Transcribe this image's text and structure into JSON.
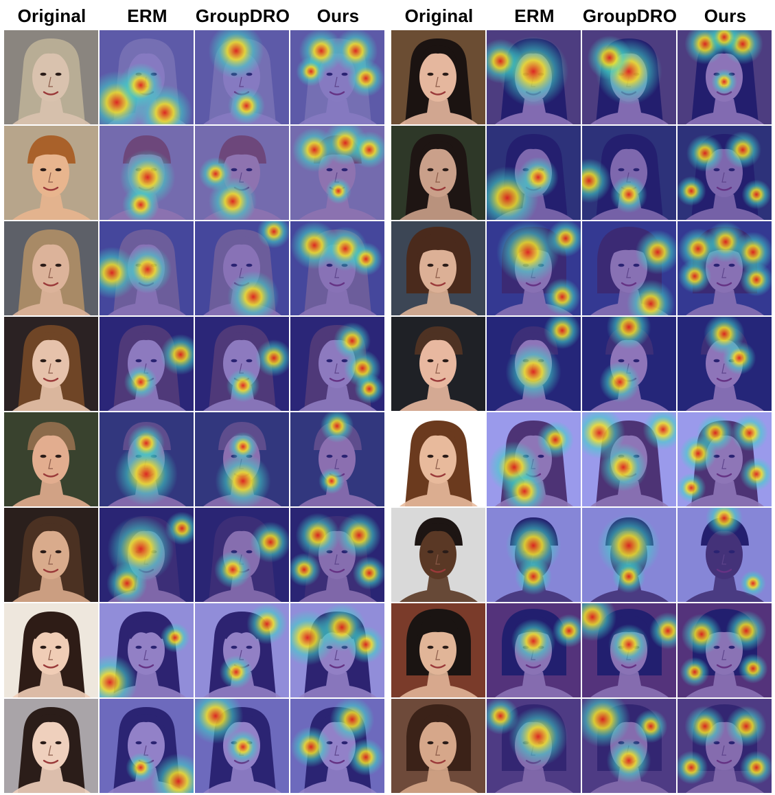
{
  "columns": [
    "Original",
    "ERM",
    "GroupDRO",
    "Ours"
  ],
  "palette": {
    "jet_overlay_tint": "#2b2bd6",
    "hot": "#e0241c",
    "warm": "#f2e32a",
    "mid": "#3fd3c9"
  },
  "panels": [
    {
      "rows": [
        {
          "bg": "#8a857f",
          "hair": "#b8ad95",
          "skin": "#d9c2ae",
          "hair_style": "long"
        },
        {
          "bg": "#b7a58b",
          "hair": "#a9612a",
          "skin": "#e8b58e",
          "hair_style": "bowl"
        },
        {
          "bg": "#5d6068",
          "hair": "#a88a66",
          "skin": "#dcb39a",
          "hair_style": "long"
        },
        {
          "bg": "#2b2223",
          "hair": "#6f4526",
          "skin": "#e6c2ab",
          "hair_style": "long"
        },
        {
          "bg": "#39422e",
          "hair": "#8c6b4b",
          "skin": "#e2ad8f",
          "hair_style": "short"
        },
        {
          "bg": "#2a1f1c",
          "hair": "#4b3122",
          "skin": "#d9ab8c",
          "hair_style": "long"
        },
        {
          "bg": "#eee7dd",
          "hair": "#2e1c16",
          "skin": "#f0cdb6",
          "hair_style": "bangs"
        },
        {
          "bg": "#a9a4a8",
          "hair": "#2b1d19",
          "skin": "#efd0bd",
          "hair_style": "long"
        }
      ]
    },
    {
      "rows": [
        {
          "bg": "#6b4d33",
          "hair": "#1b1311",
          "skin": "#e5b79e",
          "hair_style": "long"
        },
        {
          "bg": "#2e3828",
          "hair": "#1e1513",
          "skin": "#caa08a",
          "hair_style": "long"
        },
        {
          "bg": "#3c4655",
          "hair": "#4a2a1c",
          "skin": "#dcb096",
          "hair_style": "bob"
        },
        {
          "bg": "#1f2126",
          "hair": "#4e3223",
          "skin": "#e8b8a0",
          "hair_style": "short"
        },
        {
          "bg": "#ffffff",
          "hair": "#6b3a1e",
          "skin": "#e8ba9c",
          "hair_style": "wide"
        },
        {
          "bg": "#d9d9d9",
          "hair": "#1d1513",
          "skin": "#5a3825",
          "hair_style": "short"
        },
        {
          "bg": "#7a3b2a",
          "hair": "#1a1412",
          "skin": "#e1b598",
          "hair_style": "bob"
        },
        {
          "bg": "#6e4a3a",
          "hair": "#3b2218",
          "skin": "#d6a78a",
          "hair_style": "bouffant"
        }
      ]
    }
  ],
  "heatmaps": {
    "ERM": [
      [
        [
          25,
          105,
          34
        ],
        [
          95,
          120,
          30
        ],
        [
          60,
          80,
          24
        ]
      ],
      [
        [
          70,
          75,
          30
        ],
        [
          60,
          115,
          20
        ]
      ],
      [
        [
          18,
          75,
          28
        ],
        [
          70,
          70,
          26
        ]
      ],
      [
        [
          118,
          55,
          22
        ],
        [
          60,
          95,
          18
        ]
      ],
      [
        [
          68,
          90,
          34
        ],
        [
          68,
          45,
          20
        ]
      ],
      [
        [
          60,
          60,
          36
        ],
        [
          40,
          110,
          22
        ],
        [
          120,
          30,
          18
        ]
      ],
      [
        [
          15,
          115,
          30
        ],
        [
          110,
          50,
          16
        ]
      ],
      [
        [
          115,
          120,
          30
        ],
        [
          60,
          100,
          16
        ]
      ],
      [
        [
          68,
          60,
          38
        ],
        [
          20,
          45,
          24
        ]
      ],
      [
        [
          30,
          105,
          34
        ],
        [
          75,
          75,
          22
        ]
      ],
      [
        [
          60,
          45,
          34
        ],
        [
          115,
          25,
          20
        ],
        [
          110,
          110,
          20
        ]
      ],
      [
        [
          68,
          80,
          30
        ],
        [
          110,
          20,
          20
        ]
      ],
      [
        [
          40,
          80,
          28
        ],
        [
          55,
          115,
          24
        ],
        [
          100,
          40,
          20
        ]
      ],
      [
        [
          68,
          55,
          30
        ],
        [
          68,
          100,
          20
        ]
      ],
      [
        [
          68,
          55,
          24
        ],
        [
          120,
          40,
          18
        ]
      ],
      [
        [
          75,
          55,
          32
        ],
        [
          20,
          25,
          20
        ]
      ]
    ],
    "GroupDRO": [
      [
        [
          60,
          30,
          30
        ],
        [
          75,
          110,
          20
        ]
      ],
      [
        [
          55,
          110,
          26
        ],
        [
          30,
          70,
          18
        ]
      ],
      [
        [
          85,
          110,
          28
        ],
        [
          115,
          15,
          18
        ]
      ],
      [
        [
          115,
          60,
          20
        ],
        [
          70,
          100,
          18
        ]
      ],
      [
        [
          70,
          100,
          30
        ],
        [
          70,
          50,
          16
        ]
      ],
      [
        [
          110,
          50,
          22
        ],
        [
          55,
          90,
          20
        ]
      ],
      [
        [
          105,
          30,
          22
        ],
        [
          60,
          100,
          18
        ]
      ],
      [
        [
          30,
          25,
          30
        ],
        [
          70,
          70,
          18
        ]
      ],
      [
        [
          68,
          60,
          36
        ],
        [
          40,
          40,
          24
        ]
      ],
      [
        [
          10,
          80,
          24
        ],
        [
          68,
          100,
          20
        ]
      ],
      [
        [
          110,
          45,
          24
        ],
        [
          100,
          120,
          26
        ]
      ],
      [
        [
          68,
          15,
          24
        ],
        [
          55,
          95,
          22
        ]
      ],
      [
        [
          25,
          30,
          28
        ],
        [
          60,
          80,
          26
        ],
        [
          118,
          25,
          22
        ]
      ],
      [
        [
          68,
          55,
          34
        ],
        [
          68,
          100,
          18
        ]
      ],
      [
        [
          15,
          20,
          26
        ],
        [
          68,
          60,
          22
        ],
        [
          125,
          40,
          20
        ]
      ],
      [
        [
          30,
          30,
          30
        ],
        [
          68,
          90,
          24
        ],
        [
          100,
          40,
          18
        ]
      ]
    ],
    "Ours": [
      [
        [
          45,
          30,
          24
        ],
        [
          95,
          30,
          24
        ],
        [
          110,
          70,
          20
        ],
        [
          30,
          60,
          16
        ]
      ],
      [
        [
          35,
          35,
          24
        ],
        [
          80,
          25,
          24
        ],
        [
          115,
          35,
          20
        ],
        [
          70,
          95,
          14
        ]
      ],
      [
        [
          35,
          35,
          26
        ],
        [
          80,
          40,
          24
        ],
        [
          110,
          55,
          18
        ]
      ],
      [
        [
          90,
          35,
          20
        ],
        [
          105,
          75,
          20
        ],
        [
          115,
          105,
          16
        ]
      ],
      [
        [
          68,
          20,
          18
        ],
        [
          60,
          100,
          14
        ]
      ],
      [
        [
          40,
          40,
          24
        ],
        [
          100,
          40,
          24
        ],
        [
          20,
          90,
          18
        ],
        [
          115,
          95,
          18
        ]
      ],
      [
        [
          25,
          50,
          30
        ],
        [
          75,
          35,
          26
        ],
        [
          110,
          60,
          20
        ]
      ],
      [
        [
          30,
          70,
          22
        ],
        [
          90,
          30,
          24
        ],
        [
          110,
          85,
          20
        ]
      ],
      [
        [
          40,
          20,
          22
        ],
        [
          95,
          20,
          22
        ],
        [
          68,
          10,
          18
        ],
        [
          68,
          75,
          14
        ]
      ],
      [
        [
          40,
          40,
          20
        ],
        [
          95,
          35,
          20
        ],
        [
          20,
          95,
          16
        ],
        [
          115,
          100,
          16
        ]
      ],
      [
        [
          30,
          40,
          22
        ],
        [
          70,
          30,
          22
        ],
        [
          110,
          45,
          22
        ],
        [
          25,
          80,
          18
        ],
        [
          115,
          85,
          18
        ]
      ],
      [
        [
          68,
          25,
          22
        ],
        [
          90,
          60,
          18
        ]
      ],
      [
        [
          30,
          60,
          20
        ],
        [
          55,
          30,
          20
        ],
        [
          105,
          30,
          20
        ],
        [
          115,
          90,
          18
        ],
        [
          20,
          110,
          16
        ]
      ],
      [
        [
          68,
          15,
          20
        ],
        [
          110,
          110,
          14
        ]
      ],
      [
        [
          35,
          45,
          22
        ],
        [
          100,
          40,
          22
        ],
        [
          110,
          95,
          16
        ],
        [
          25,
          100,
          16
        ]
      ],
      [
        [
          40,
          40,
          22
        ],
        [
          100,
          40,
          22
        ],
        [
          20,
          100,
          18
        ],
        [
          115,
          100,
          18
        ]
      ]
    ]
  }
}
